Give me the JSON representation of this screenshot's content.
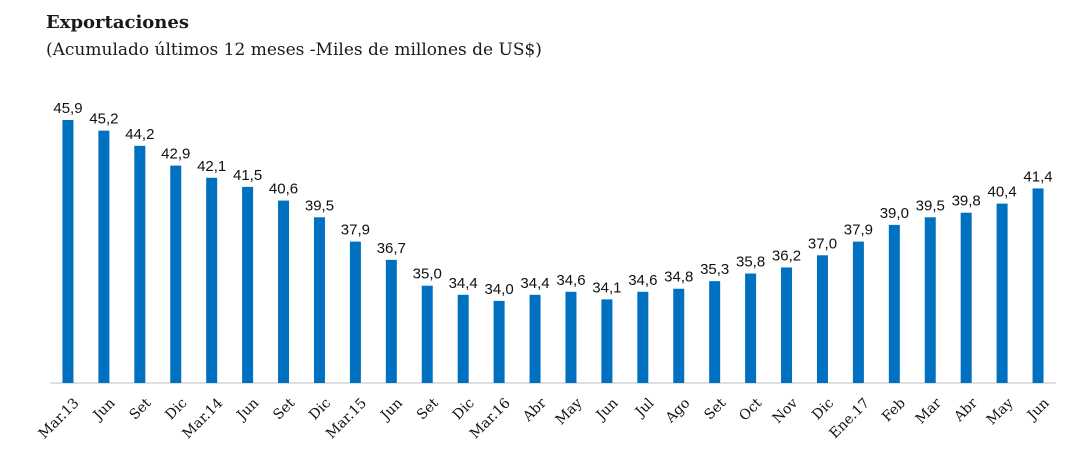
{
  "chart_data": {
    "type": "bar",
    "title": "Exportaciones",
    "subtitle": "(Acumulado últimos 12 meses -Miles de millones de US$)",
    "categories": [
      "Mar.13",
      "Jun",
      "Set",
      "Dic",
      "Mar.14",
      "Jun",
      "Set",
      "Dic",
      "Mar.15",
      "Jun",
      "Set",
      "Dic",
      "Mar.16",
      "Abr",
      "May",
      "Jun",
      "Jul",
      "Ago",
      "Set",
      "Oct",
      "Nov",
      "Dic",
      "Ene.17",
      "Feb",
      "Mar",
      "Abr",
      "May",
      "Jun"
    ],
    "values": [
      45.9,
      45.2,
      44.2,
      42.9,
      42.1,
      41.5,
      40.6,
      39.5,
      37.9,
      36.7,
      35.0,
      34.4,
      34.0,
      34.4,
      34.6,
      34.1,
      34.6,
      34.8,
      35.3,
      35.8,
      36.2,
      37.0,
      37.9,
      39.0,
      39.5,
      39.8,
      40.4,
      41.4
    ],
    "value_labels": [
      "45,9",
      "45,2",
      "44,2",
      "42,9",
      "42,1",
      "41,5",
      "40,6",
      "39,5",
      "37,9",
      "36,7",
      "35,0",
      "34,4",
      "34,0",
      "34,4",
      "34,6",
      "34,1",
      "34,6",
      "34,8",
      "35,3",
      "35,8",
      "36,2",
      "37,0",
      "37,9",
      "39,0",
      "39,5",
      "39,8",
      "40,4",
      "41,4"
    ],
    "ylim": [
      28.6,
      45.9
    ],
    "grid": false,
    "bar_color": "#0070C0",
    "axis_color": "#bfbfbf"
  }
}
